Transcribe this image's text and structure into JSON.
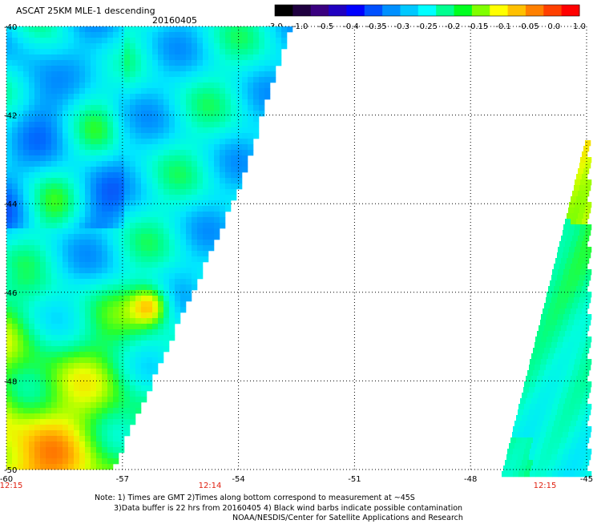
{
  "title": "ASCAT 25KM MLE-1 descending",
  "date": "20160405",
  "colorbar": {
    "colors": [
      "#000000",
      "#1f0040",
      "#3a0080",
      "#2000c0",
      "#0000ff",
      "#0050ff",
      "#0090ff",
      "#00c8ff",
      "#00ffff",
      "#00ff90",
      "#00ff20",
      "#80ff00",
      "#ffff00",
      "#ffc000",
      "#ff8000",
      "#ff4000",
      "#ff0000"
    ],
    "labels": [
      "-3.0",
      "-1.0",
      "-0.5",
      "-0.4",
      "-0.35",
      "-0.3",
      "-0.25",
      "-0.2",
      "-0.15",
      "-0.1",
      "-0.05",
      "0.0",
      "1.0"
    ]
  },
  "axes": {
    "lat_labels": [
      "-40",
      "-42",
      "-44",
      "-46",
      "-48",
      "-50"
    ],
    "lon_labels": [
      "-60",
      "-57",
      "-54",
      "-51",
      "-48",
      "-45"
    ],
    "lat_range": [
      -40,
      -50
    ],
    "lon_range": [
      -60,
      -45
    ],
    "grid": "dotted"
  },
  "time_labels": [
    "12:15",
    "12:14",
    "12:15"
  ],
  "notes": [
    "Note: 1) Times are GMT 2)Times along bottom correspond to measurement at ~45S",
    "3)Data buffer is 22 hrs from 20160405 4) Black wind barbs indicate possible contamination",
    "NOAA/NESDIS/Center for Satellite Applications and Research"
  ]
}
